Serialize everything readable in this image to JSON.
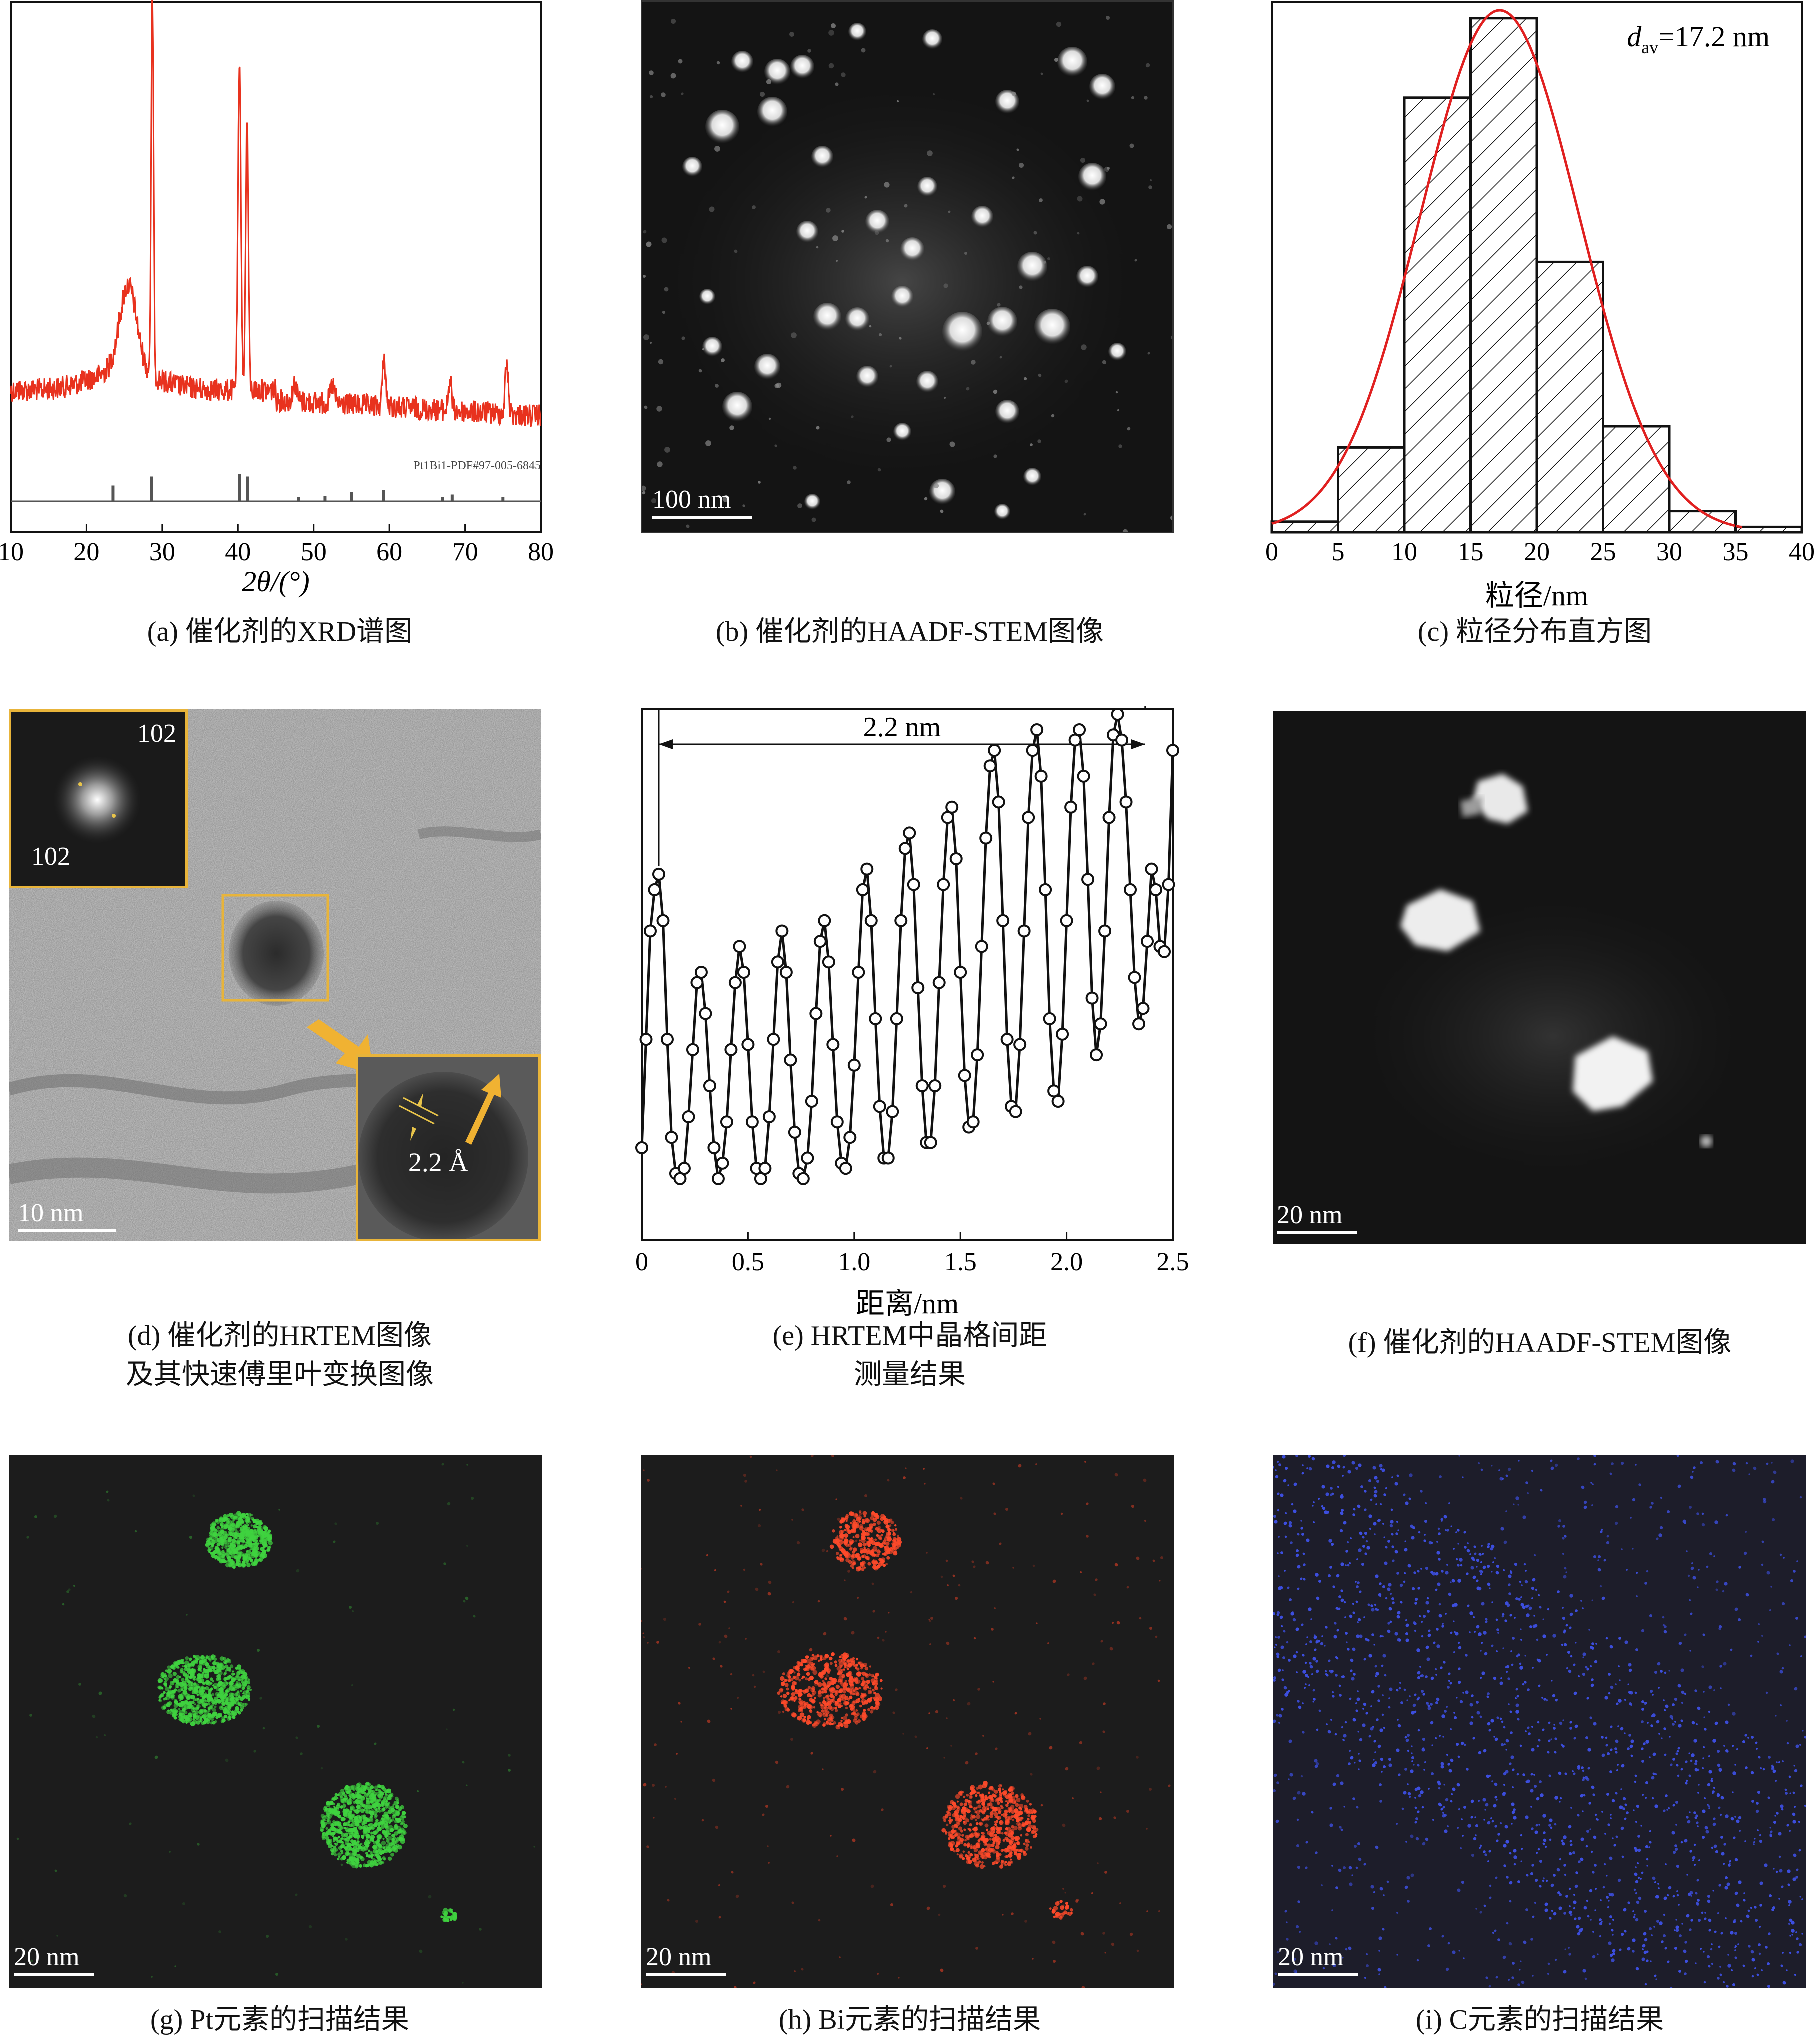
{
  "panels": {
    "a": {
      "caption": "(a) 催化剂的XRD谱图",
      "xlabel": "2θ/(°)",
      "ref_label": "Pt1Bi1-PDF#97-005-6845",
      "xticks": [
        "10",
        "20",
        "30",
        "40",
        "50",
        "60",
        "70",
        "80"
      ]
    },
    "b": {
      "caption": "(b) 催化剂的HAADF-STEM图像",
      "scalebar": "100 nm"
    },
    "c": {
      "caption": "(c) 粒径分布直方图",
      "xlabel": "粒径/nm",
      "annotation_var": "d",
      "annotation_sub": "av",
      "annotation_value": "=17.2 nm",
      "xticks": [
        "0",
        "5",
        "10",
        "15",
        "20",
        "25",
        "30",
        "35",
        "40"
      ]
    },
    "d": {
      "caption_line1": "(d) 催化剂的HRTEM图像",
      "caption_line2": "及其快速傅里叶变换图像",
      "fft_label_top": "102",
      "fft_label_bottom": "102",
      "spacing_label": "2.2 Å",
      "scalebar": "10 nm"
    },
    "e": {
      "caption_line1": "(e) HRTEM中晶格间距",
      "caption_line2": "测量结果",
      "xlabel": "距离/nm",
      "span_label": "2.2 nm",
      "xticks": [
        "0",
        "0.5",
        "1.0",
        "1.5",
        "2.0",
        "2.5"
      ]
    },
    "f": {
      "caption": "(f) 催化剂的HAADF-STEM图像",
      "scalebar": "20 nm"
    },
    "g": {
      "caption": "(g) Pt元素的扫描结果",
      "scalebar": "20 nm",
      "color": "#3fd23f"
    },
    "h": {
      "caption": "(h) Bi元素的扫描结果",
      "scalebar": "20 nm",
      "color": "#ff4a2a"
    },
    "i": {
      "caption": "(i) C元素的扫描结果",
      "scalebar": "20 nm",
      "color": "#3d4fe0"
    }
  },
  "chart_data": {
    "a": {
      "type": "line",
      "series": [
        {
          "color": "#e8321e"
        }
      ],
      "xlabel": "2θ/(°)",
      "xlim": [
        10,
        80
      ],
      "peaks_2theta": [
        25.5,
        28.7,
        40.2,
        41.2,
        59.3,
        68.0,
        75.5
      ],
      "reference_lines_2theta": [
        23.5,
        28.6,
        40.2,
        41.3,
        48.0,
        51.5,
        55.0,
        59.2,
        67.0,
        68.3,
        75.0
      ],
      "reference_relative_height": [
        0.35,
        0.55,
        0.6,
        0.55,
        0.1,
        0.12,
        0.2,
        0.25,
        0.1,
        0.15,
        0.1
      ]
    },
    "c": {
      "type": "bar",
      "bin_edges": [
        0,
        5,
        10,
        15,
        20,
        25,
        30,
        35,
        40
      ],
      "values": [
        0.02,
        0.16,
        0.82,
        0.97,
        0.51,
        0.2,
        0.04,
        0.01
      ],
      "ylim": [
        0,
        1.0
      ],
      "fit_curve": {
        "type": "gaussian",
        "mean": 17.2,
        "sigma": 6.0,
        "peak": 1.0,
        "color": "#e02020"
      },
      "annotation": "dav=17.2 nm",
      "xlabel": "粒径/nm",
      "xlim": [
        0,
        40
      ]
    },
    "e": {
      "type": "line",
      "xlim": [
        0,
        2.5
      ],
      "ylim": [
        0,
        1
      ],
      "xlabel": "距离/nm",
      "span_marker": {
        "from": 0.08,
        "to": 2.37,
        "label": "2.2 nm"
      },
      "x": [
        0.0,
        0.02,
        0.04,
        0.06,
        0.08,
        0.1,
        0.12,
        0.14,
        0.16,
        0.18,
        0.2,
        0.22,
        0.24,
        0.26,
        0.28,
        0.3,
        0.32,
        0.34,
        0.36,
        0.38,
        0.4,
        0.42,
        0.44,
        0.46,
        0.48,
        0.5,
        0.52,
        0.54,
        0.56,
        0.58,
        0.6,
        0.62,
        0.64,
        0.66,
        0.68,
        0.7,
        0.72,
        0.74,
        0.76,
        0.78,
        0.8,
        0.82,
        0.84,
        0.86,
        0.88,
        0.9,
        0.92,
        0.94,
        0.96,
        0.98,
        1.0,
        1.02,
        1.04,
        1.06,
        1.08,
        1.1,
        1.12,
        1.14,
        1.16,
        1.18,
        1.2,
        1.22,
        1.24,
        1.26,
        1.28,
        1.3,
        1.32,
        1.34,
        1.36,
        1.38,
        1.4,
        1.42,
        1.44,
        1.46,
        1.48,
        1.5,
        1.52,
        1.54,
        1.56,
        1.58,
        1.6,
        1.62,
        1.64,
        1.66,
        1.68,
        1.7,
        1.72,
        1.74,
        1.76,
        1.78,
        1.8,
        1.82,
        1.84,
        1.86,
        1.88,
        1.9,
        1.92,
        1.94,
        1.96,
        1.98,
        2.0,
        2.02,
        2.04,
        2.06,
        2.08,
        2.1,
        2.12,
        2.14,
        2.16,
        2.18,
        2.2,
        2.22,
        2.24,
        2.26,
        2.28,
        2.3,
        2.32,
        2.34,
        2.36,
        2.38,
        2.4,
        2.42,
        2.44,
        2.46,
        2.48,
        2.5
      ],
      "y": [
        0.16,
        0.37,
        0.58,
        0.66,
        0.69,
        0.6,
        0.37,
        0.18,
        0.11,
        0.1,
        0.12,
        0.22,
        0.35,
        0.48,
        0.5,
        0.42,
        0.28,
        0.16,
        0.1,
        0.13,
        0.21,
        0.35,
        0.48,
        0.55,
        0.5,
        0.36,
        0.21,
        0.12,
        0.1,
        0.12,
        0.22,
        0.37,
        0.52,
        0.58,
        0.5,
        0.33,
        0.19,
        0.11,
        0.1,
        0.14,
        0.25,
        0.42,
        0.56,
        0.6,
        0.52,
        0.36,
        0.21,
        0.13,
        0.12,
        0.18,
        0.32,
        0.5,
        0.66,
        0.7,
        0.6,
        0.41,
        0.24,
        0.14,
        0.14,
        0.23,
        0.41,
        0.6,
        0.74,
        0.77,
        0.67,
        0.47,
        0.28,
        0.17,
        0.17,
        0.28,
        0.48,
        0.67,
        0.8,
        0.82,
        0.72,
        0.5,
        0.3,
        0.2,
        0.21,
        0.34,
        0.55,
        0.76,
        0.9,
        0.93,
        0.83,
        0.6,
        0.37,
        0.24,
        0.23,
        0.36,
        0.58,
        0.8,
        0.93,
        0.97,
        0.88,
        0.66,
        0.41,
        0.27,
        0.25,
        0.38,
        0.6,
        0.82,
        0.95,
        0.97,
        0.88,
        0.68,
        0.45,
        0.34,
        0.4,
        0.58,
        0.8,
        0.96,
        1.0,
        0.95,
        0.83,
        0.66,
        0.49,
        0.4,
        0.43,
        0.56,
        0.7,
        0.66,
        0.55,
        0.54,
        0.67,
        0.93
      ]
    }
  }
}
